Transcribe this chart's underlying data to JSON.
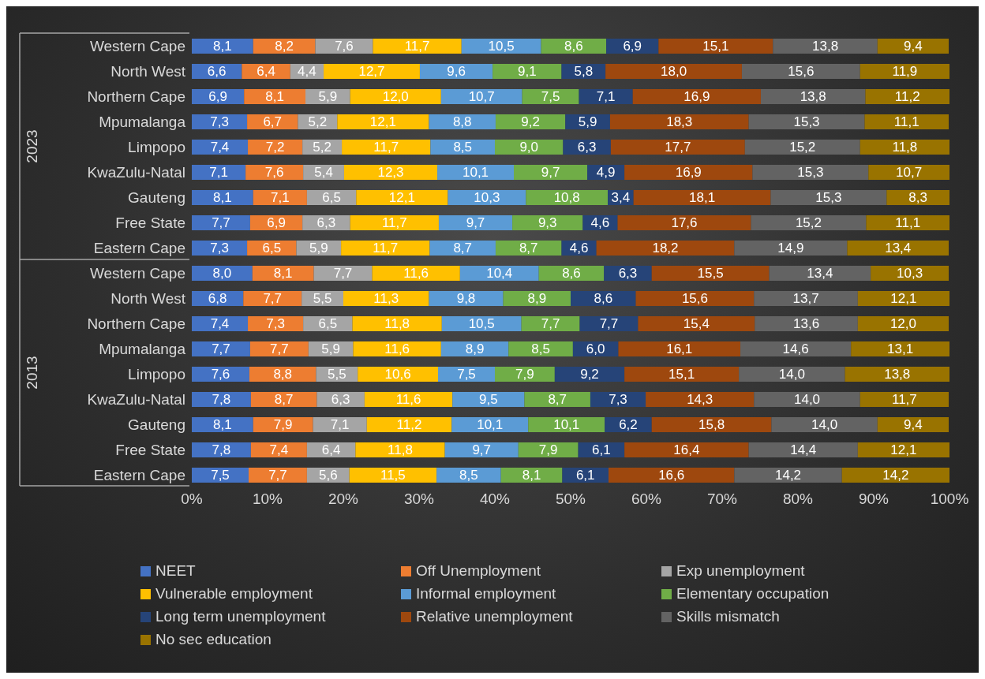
{
  "chart_data": {
    "type": "bar",
    "orientation": "horizontal",
    "stacked": true,
    "legend": "bottom",
    "categories": [
      "Western Cape",
      "North West",
      "Northern Cape",
      "Mpumalanga",
      "Limpopo",
      "KwaZulu-Natal",
      "Gauteng",
      "Free State",
      "Eastern Cape",
      "Western Cape",
      "North West",
      "Northern Cape",
      "Mpumalanga",
      "Limpopo",
      "KwaZulu-Natal",
      "Gauteng",
      "Free State",
      "Eastern Cape"
    ],
    "annotations": [
      "2023",
      "2013"
    ],
    "xlim": [
      0,
      100
    ],
    "xticks": [
      {
        "value": 0,
        "label": "0%"
      },
      {
        "value": 10,
        "label": "10%"
      },
      {
        "value": 20,
        "label": "20%"
      },
      {
        "value": 30,
        "label": "30%"
      },
      {
        "value": 40,
        "label": "40%"
      },
      {
        "value": 50,
        "label": "50%"
      },
      {
        "value": 60,
        "label": "60%"
      },
      {
        "value": 70,
        "label": "70%"
      },
      {
        "value": 80,
        "label": "80%"
      },
      {
        "value": 90,
        "label": "90%"
      },
      {
        "value": 100,
        "label": "100%"
      }
    ],
    "series": [
      {
        "name": "NEET",
        "color": "#4472c4",
        "values": [
          8.1,
          6.6,
          6.9,
          7.3,
          7.4,
          7.1,
          8.1,
          7.7,
          7.3,
          8.0,
          6.8,
          7.4,
          7.7,
          7.6,
          7.8,
          8.1,
          7.8,
          7.5
        ],
        "value_labels": [
          "8,1",
          "6,6",
          "6,9",
          "7,3",
          "7,4",
          "7,1",
          "8,1",
          "7,7",
          "7,3",
          "8,0",
          "6,8",
          "7,4",
          "7,7",
          "7,6",
          "7,8",
          "8,1",
          "7,8",
          "7,5"
        ]
      },
      {
        "name": "Off Unemployment",
        "color": "#ed7d31",
        "values": [
          8.2,
          6.4,
          8.1,
          6.7,
          7.2,
          7.6,
          7.1,
          6.9,
          6.5,
          8.1,
          7.7,
          7.3,
          7.7,
          8.8,
          8.7,
          7.9,
          7.4,
          7.7
        ],
        "value_labels": [
          "8,2",
          "6,4",
          "8,1",
          "6,7",
          "7,2",
          "7,6",
          "7,1",
          "6,9",
          "6,5",
          "8,1",
          "7,7",
          "7,3",
          "7,7",
          "8,8",
          "8,7",
          "7,9",
          "7,4",
          "7,7"
        ]
      },
      {
        "name": "Exp unemployment",
        "color": "#a5a5a5",
        "values": [
          7.6,
          4.4,
          5.9,
          5.2,
          5.2,
          5.4,
          6.5,
          6.3,
          5.9,
          7.7,
          5.5,
          6.5,
          5.9,
          5.5,
          6.3,
          7.1,
          6.4,
          5.6
        ],
        "value_labels": [
          "7,6",
          "4,4",
          "5,9",
          "5,2",
          "5,2",
          "5,4",
          "6,5",
          "6,3",
          "5,9",
          "7,7",
          "5,5",
          "6,5",
          "5,9",
          "5,5",
          "6,3",
          "7,1",
          "6,4",
          "5,6"
        ]
      },
      {
        "name": "Vulnerable employment",
        "color": "#ffc000",
        "values": [
          11.7,
          12.7,
          12.0,
          12.1,
          11.7,
          12.3,
          12.1,
          11.7,
          11.7,
          11.6,
          11.3,
          11.8,
          11.6,
          10.6,
          11.6,
          11.2,
          11.8,
          11.5
        ],
        "value_labels": [
          "11,7",
          "12,7",
          "12,0",
          "12,1",
          "11,7",
          "12,3",
          "12,1",
          "11,7",
          "11,7",
          "11,6",
          "11,3",
          "11,8",
          "11,6",
          "10,6",
          "11,6",
          "11,2",
          "11,8",
          "11,5"
        ]
      },
      {
        "name": "Informal employment",
        "color": "#5b9bd5",
        "values": [
          10.5,
          9.6,
          10.7,
          8.8,
          8.5,
          10.1,
          10.3,
          9.7,
          8.7,
          10.4,
          9.8,
          10.5,
          8.9,
          7.5,
          9.5,
          10.1,
          9.7,
          8.5
        ],
        "value_labels": [
          "10,5",
          "9,6",
          "10,7",
          "8,8",
          "8,5",
          "10,1",
          "10,3",
          "9,7",
          "8,7",
          "10,4",
          "9,8",
          "10,5",
          "8,9",
          "7,5",
          "9,5",
          "10,1",
          "9,7",
          "8,5"
        ]
      },
      {
        "name": "Elementary occupation",
        "color": "#70ad47",
        "values": [
          8.6,
          9.1,
          7.5,
          9.2,
          9.0,
          9.7,
          10.8,
          9.3,
          8.7,
          8.6,
          8.9,
          7.7,
          8.5,
          7.9,
          8.7,
          10.1,
          7.9,
          8.1
        ],
        "value_labels": [
          "8,6",
          "9,1",
          "7,5",
          "9,2",
          "9,0",
          "9,7",
          "10,8",
          "9,3",
          "8,7",
          "8,6",
          "8,9",
          "7,7",
          "8,5",
          "7,9",
          "8,7",
          "10,1",
          "7,9",
          "8,1"
        ]
      },
      {
        "name": "Long term unemployment",
        "color": "#264478",
        "values": [
          6.9,
          5.8,
          7.1,
          5.9,
          6.3,
          4.9,
          3.4,
          4.6,
          4.6,
          6.3,
          8.6,
          7.7,
          6.0,
          9.2,
          7.3,
          6.2,
          6.1,
          6.1
        ],
        "value_labels": [
          "6,9",
          "5,8",
          "7,1",
          "5,9",
          "6,3",
          "4,9",
          "3,4",
          "4,6",
          "4,6",
          "6,3",
          "8,6",
          "7,7",
          "6,0",
          "9,2",
          "7,3",
          "6,2",
          "6,1",
          "6,1"
        ]
      },
      {
        "name": "Relative unemployment",
        "color": "#9e480e",
        "values": [
          15.1,
          18.0,
          16.9,
          18.3,
          17.7,
          16.9,
          18.1,
          17.6,
          18.2,
          15.5,
          15.6,
          15.4,
          16.1,
          15.1,
          14.3,
          15.8,
          16.4,
          16.6
        ],
        "value_labels": [
          "15,1",
          "18,0",
          "16,9",
          "18,3",
          "17,7",
          "16,9",
          "18,1",
          "17,6",
          "18,2",
          "15,5",
          "15,6",
          "15,4",
          "16,1",
          "15,1",
          "14,3",
          "15,8",
          "16,4",
          "16,6"
        ]
      },
      {
        "name": "Skills mismatch",
        "color": "#636363",
        "values": [
          13.8,
          15.6,
          13.8,
          15.3,
          15.2,
          15.3,
          15.3,
          15.2,
          14.9,
          13.4,
          13.7,
          13.6,
          14.6,
          14.0,
          14.0,
          14.0,
          14.4,
          14.2
        ],
        "value_labels": [
          "13,8",
          "15,6",
          "13,8",
          "15,3",
          "15,2",
          "15,3",
          "15,3",
          "15,2",
          "14,9",
          "13,4",
          "13,7",
          "13,6",
          "14,6",
          "14,0",
          "14,0",
          "14,0",
          "14,4",
          "14,2"
        ]
      },
      {
        "name": "No sec education",
        "color": "#997300",
        "values": [
          9.4,
          11.9,
          11.2,
          11.1,
          11.8,
          10.7,
          8.3,
          11.1,
          13.4,
          10.3,
          12.1,
          12.0,
          13.1,
          13.8,
          11.7,
          9.4,
          12.1,
          14.2
        ],
        "value_labels": [
          "9,4",
          "11,9",
          "11,2",
          "11,1",
          "11,8",
          "10,7",
          "8,3",
          "11,1",
          "13,4",
          "10,3",
          "12,1",
          "12,0",
          "13,1",
          "13,8",
          "11,7",
          "9,4",
          "12,1",
          "14,2"
        ]
      }
    ]
  }
}
